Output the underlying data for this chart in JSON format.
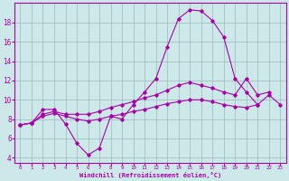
{
  "background_color": "#cce8e8",
  "line_color": "#aa00aa",
  "grid_color": "#99bbbb",
  "xlabel": "Windchill (Refroidissement éolien,°C)",
  "xlim": [
    -0.5,
    23.5
  ],
  "ylim": [
    3.5,
    20.0
  ],
  "yticks": [
    4,
    6,
    8,
    10,
    12,
    14,
    16,
    18
  ],
  "xticks": [
    0,
    1,
    2,
    3,
    4,
    5,
    6,
    7,
    8,
    9,
    10,
    11,
    12,
    13,
    14,
    15,
    16,
    17,
    18,
    19,
    20,
    21,
    22,
    23
  ],
  "curve1_x": [
    0,
    1,
    2,
    3,
    4,
    5,
    6,
    7,
    8,
    9,
    10,
    11,
    12,
    13,
    14,
    15,
    16,
    17,
    18,
    19,
    20,
    21,
    22,
    23
  ],
  "curve1_y": [
    7.4,
    7.6,
    9.0,
    9.0,
    7.5,
    5.5,
    4.3,
    5.0,
    8.3,
    8.0,
    9.5,
    10.8,
    12.2,
    15.5,
    18.4,
    19.3,
    19.2,
    18.2,
    16.5,
    12.2,
    10.8,
    9.5,
    null,
    null
  ],
  "curve2_x": [
    0,
    1,
    2,
    3,
    4,
    5,
    6,
    7,
    8,
    9,
    10,
    11,
    12,
    13,
    14,
    15,
    16,
    17,
    18,
    19,
    20,
    21,
    22,
    23
  ],
  "curve2_y": [
    7.4,
    7.6,
    8.5,
    8.8,
    8.5,
    8.5,
    8.5,
    8.8,
    9.2,
    9.5,
    9.8,
    10.2,
    10.5,
    11.0,
    11.5,
    11.8,
    11.5,
    11.2,
    10.8,
    10.5,
    12.2,
    10.5,
    10.8,
    null
  ],
  "curve3_x": [
    0,
    1,
    2,
    3,
    4,
    5,
    6,
    7,
    8,
    9,
    10,
    11,
    12,
    13,
    14,
    15,
    16,
    17,
    18,
    19,
    20,
    21,
    22,
    23
  ],
  "curve3_y": [
    7.4,
    7.6,
    8.3,
    8.6,
    8.3,
    8.0,
    7.8,
    8.0,
    8.3,
    8.5,
    8.8,
    9.0,
    9.3,
    9.6,
    9.8,
    10.0,
    10.0,
    9.8,
    9.5,
    9.3,
    9.2,
    9.5,
    10.5,
    9.5
  ]
}
